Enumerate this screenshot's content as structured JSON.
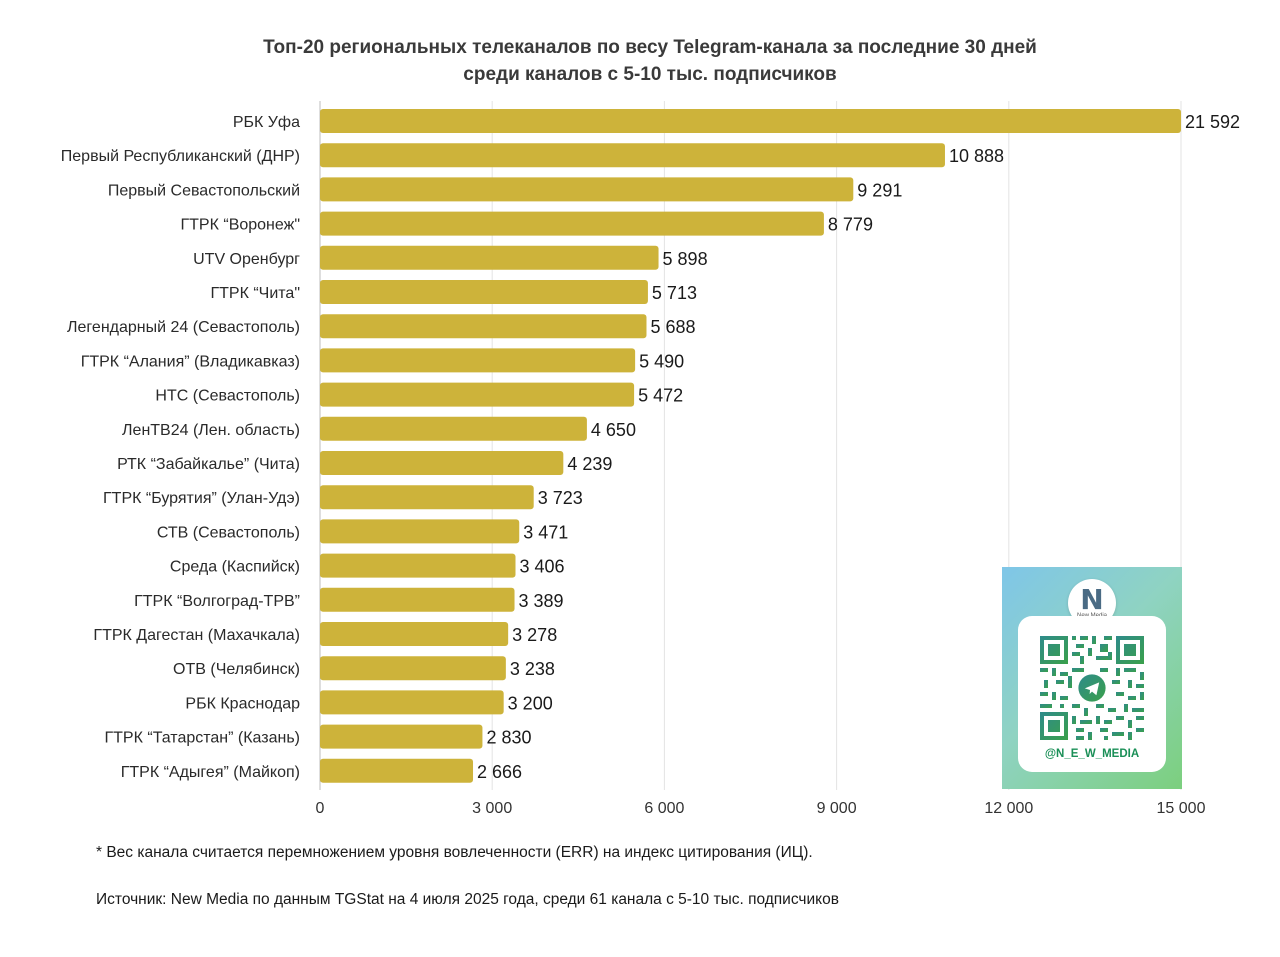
{
  "chart_data": {
    "type": "bar",
    "orientation": "horizontal",
    "title": "Топ-20 региональных телеканалов по весу Telegram-канала за последние 30 дней",
    "subtitle": "среди каналов с 5-10 тыс. подписчиков",
    "categories": [
      "РБК Уфа",
      "Первый Республиканский (ДНР)",
      "Первый Севастопольский",
      "ГТРК “Воронеж\"",
      "UTV Оренбург",
      "ГТРК “Чита\"",
      "Легендарный 24 (Севастополь)",
      "ГТРК “Алания” (Владикавказ)",
      "НТС (Севастополь)",
      "ЛенТВ24 (Лен. область)",
      "РТК “Забайкалье” (Чита)",
      "ГТРК “Бурятия” (Улан-Удэ)",
      "СТВ (Севастополь)",
      "Среда (Каспийск)",
      "ГТРК “Волгоград-ТРВ”",
      "ГТРК Дагестан (Махачкала)",
      "ОТВ (Челябинск)",
      "РБК Краснодар",
      "ГТРК “Татарстан” (Казань)",
      "ГТРК “Адыгея” (Майкоп)"
    ],
    "values": [
      21592,
      10888,
      9291,
      8779,
      5898,
      5713,
      5688,
      5490,
      5472,
      4650,
      4239,
      3723,
      3471,
      3406,
      3389,
      3278,
      3238,
      3200,
      2830,
      2666
    ],
    "value_labels": [
      "21 592",
      "10 888",
      "9 291",
      "8 779",
      "5 898",
      "5 713",
      "5 688",
      "5 490",
      "5 472",
      "4 650",
      "4 239",
      "3 723",
      "3 471",
      "3 406",
      "3 389",
      "3 278",
      "3 238",
      "3 200",
      "2 830",
      "2 666"
    ],
    "xlim": [
      0,
      15000
    ],
    "xticks": [
      0,
      3000,
      6000,
      9000,
      12000,
      15000
    ],
    "xtick_labels": [
      "0",
      "3 000",
      "6 000",
      "9 000",
      "12 000",
      "15 000"
    ],
    "grid": true,
    "bar_color": "#cdb33a",
    "note": "first bar is truncated at the axis maximum"
  },
  "footnotes": {
    "method": "* Вес канала считается перемножением уровня вовлеченности (ERR) на индекс цитирования (ИЦ).",
    "source": "Источник: New Media по данным TGStat на 4 июля 2025 года, среди 61 канала с 5-10 тыс. подписчиков"
  },
  "promo": {
    "logo_letter": "N",
    "logo_caption": "New Media",
    "handle": "@N_E_W_MEDIA",
    "qr_icon": "telegram-icon"
  }
}
